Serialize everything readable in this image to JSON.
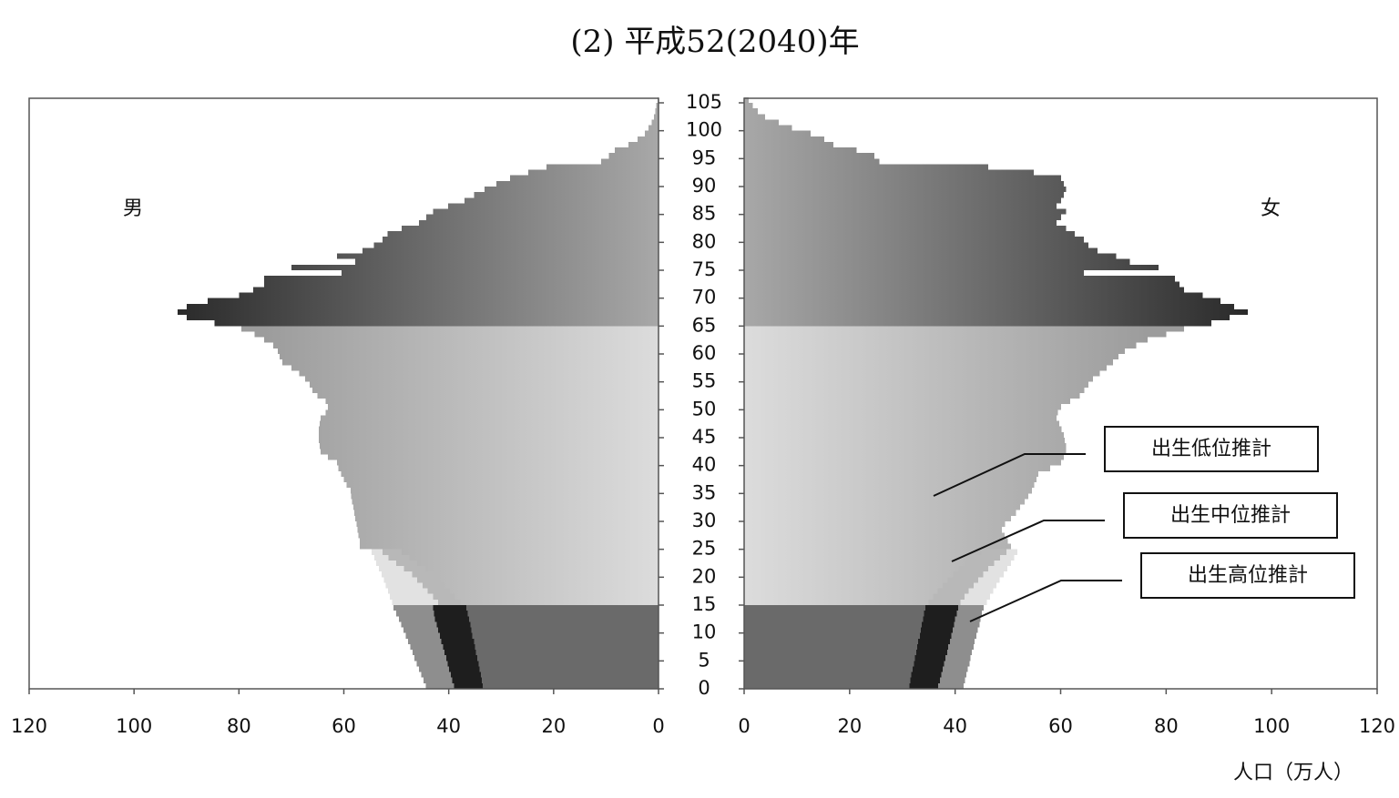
{
  "chart_data": {
    "type": "population-pyramid",
    "title": "(2) 平成52(2040)年",
    "x_label": "人口（万人）",
    "ages": [
      0,
      1,
      2,
      3,
      4,
      5,
      6,
      7,
      8,
      9,
      10,
      11,
      12,
      13,
      14,
      15,
      16,
      17,
      18,
      19,
      20,
      21,
      22,
      23,
      24,
      25,
      26,
      27,
      28,
      29,
      30,
      31,
      32,
      33,
      34,
      35,
      36,
      37,
      38,
      39,
      40,
      41,
      42,
      43,
      44,
      45,
      46,
      47,
      48,
      49,
      50,
      51,
      52,
      53,
      54,
      55,
      56,
      57,
      58,
      59,
      60,
      61,
      62,
      63,
      64,
      65,
      66,
      67,
      68,
      69,
      70,
      71,
      72,
      73,
      74,
      75,
      76,
      77,
      78,
      79,
      80,
      81,
      82,
      83,
      84,
      85,
      86,
      87,
      88,
      89,
      90,
      91,
      92,
      93,
      94,
      95,
      96,
      97,
      98,
      99,
      100,
      101,
      102,
      103,
      104,
      105
    ],
    "ylim": [
      0,
      105
    ],
    "yticks": [
      0,
      5,
      10,
      15,
      20,
      25,
      30,
      35,
      40,
      45,
      50,
      55,
      60,
      65,
      70,
      75,
      80,
      85,
      90,
      95,
      100,
      105
    ],
    "xlim": [
      0,
      120
    ],
    "xticks": [
      0,
      20,
      40,
      60,
      80,
      100,
      120
    ],
    "series": [
      {
        "name": "男",
        "side": "left",
        "values": [
          39,
          39.3,
          39.6,
          39.9,
          40.2,
          40.5,
          40.8,
          41.1,
          41.4,
          41.7,
          42,
          42.3,
          42.6,
          42.8,
          43,
          42,
          43,
          44,
          45,
          46,
          47,
          48.5,
          50,
          51.5,
          52.6,
          57,
          57,
          57.2,
          57.4,
          57.6,
          57.8,
          58,
          58.2,
          58.4,
          58.6,
          58.7,
          59.5,
          60,
          60.5,
          61,
          61.3,
          63,
          64.4,
          64.6,
          64.8,
          64.8,
          64.8,
          64.6,
          64.4,
          63.5,
          63,
          63.5,
          65,
          66,
          66.5,
          67.4,
          68.5,
          70,
          71.7,
          72.2,
          72.6,
          73.5,
          75.2,
          77,
          79.5,
          84.7,
          90,
          91.7,
          90,
          86,
          80,
          77.3,
          75.2,
          75.2,
          60.4,
          70,
          57.8,
          61.3,
          56.4,
          54.3,
          52.6,
          51.7,
          49,
          45.7,
          44.3,
          43,
          40.1,
          37,
          35.2,
          33.2,
          30.9,
          28.3,
          24.8,
          21.4,
          10.9,
          9.5,
          8.3,
          5.7,
          4,
          2.6,
          1.9,
          1.3,
          0.9,
          0.6,
          0.4,
          0.2
        ]
      },
      {
        "name": "女",
        "side": "right",
        "values": [
          36.8,
          37.1,
          37.4,
          37.6,
          37.9,
          38.2,
          38.5,
          38.7,
          39,
          39.3,
          39.5,
          39.8,
          40,
          40.3,
          40.6,
          41,
          41.8,
          42.6,
          43.5,
          44.4,
          45.3,
          46.3,
          47.4,
          48.5,
          49.7,
          50.6,
          50,
          49.4,
          48.9,
          49.5,
          50.6,
          51.5,
          52.3,
          53.2,
          53.9,
          54.6,
          55,
          55.4,
          55.8,
          58,
          60.1,
          60.6,
          61,
          61,
          60.8,
          60.6,
          60.2,
          59.7,
          59.2,
          59.5,
          60.1,
          61.8,
          63.6,
          64.5,
          65.3,
          66.1,
          67.4,
          68.7,
          69.9,
          71,
          72.2,
          74.3,
          76.5,
          80,
          83.4,
          88.6,
          92,
          95.5,
          92.9,
          90.3,
          86.9,
          83.4,
          82.5,
          81.7,
          64.4,
          78.6,
          73.1,
          70.5,
          67,
          65.3,
          64.4,
          62.7,
          61,
          59.2,
          60.1,
          61,
          59.2,
          60.1,
          60.6,
          61,
          60.6,
          60.1,
          54.9,
          46.3,
          25.6,
          24.7,
          21.3,
          16.9,
          15.2,
          12.6,
          9.1,
          6.6,
          4,
          2.6,
          1.6,
          0.9
        ]
      }
    ],
    "scenario_ages": [
      0,
      1,
      2,
      3,
      4,
      5,
      6,
      7,
      8,
      9,
      10,
      11,
      12,
      13,
      14,
      15,
      16,
      17,
      18,
      19,
      20,
      21,
      22,
      23,
      24
    ],
    "scenarios": [
      {
        "name": "出生低位推計",
        "male": [
          33.5,
          33.7,
          33.9,
          34.1,
          34.3,
          34.6,
          34.8,
          35,
          35.2,
          35.5,
          35.7,
          35.9,
          36.1,
          36.4,
          36.6,
          37.8,
          38.8,
          39.8,
          40.8,
          41.8,
          43,
          44.5,
          46,
          47.5,
          49
        ],
        "female": [
          31.3,
          31.5,
          31.7,
          31.9,
          32.2,
          32.4,
          32.6,
          32.8,
          33,
          33.3,
          33.5,
          33.7,
          33.9,
          34.1,
          34.4,
          35,
          35.8,
          36.7,
          37.6,
          38.6,
          39.6,
          40.7,
          42,
          43.5,
          45
        ]
      },
      {
        "name": "出生中位推計"
      },
      {
        "name": "出生高位推計",
        "male": [
          44.4,
          44.8,
          45.2,
          45.7,
          46.1,
          46.5,
          46.9,
          47.3,
          47.8,
          48.2,
          48.6,
          49.1,
          49.5,
          50,
          50.5,
          50.8,
          51.2,
          51.6,
          52,
          52.4,
          52.8,
          53.3,
          53.8,
          54.2,
          54.7
        ],
        "female": [
          41.6,
          41.9,
          42.1,
          42.4,
          42.7,
          42.9,
          43.2,
          43.5,
          43.7,
          44,
          44.3,
          44.6,
          44.8,
          45.1,
          45.4,
          46,
          46.6,
          47.2,
          47.8,
          48.4,
          49.2,
          49.9,
          50.6,
          51.2,
          51.8
        ]
      }
    ]
  }
}
